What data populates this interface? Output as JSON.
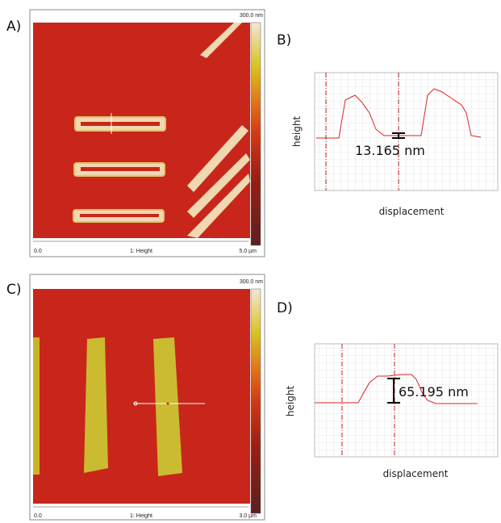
{
  "panels": [
    {
      "label": "A)",
      "scale_max": "300.0 nm",
      "axis_start": "0.0",
      "channel": "1: Height",
      "axis_end": "5.0 µm"
    },
    {
      "label": "B)",
      "y_label": "height",
      "x_label": "displacement",
      "measurement": "13.165 nm"
    },
    {
      "label": "C)",
      "scale_max": "300.0 nm",
      "axis_start": "0.0",
      "channel": "1: Height",
      "axis_end": "3.0 µm"
    },
    {
      "label": "D)",
      "y_label": "height",
      "x_label": "displacement",
      "measurement": "65.195 nm"
    }
  ]
}
